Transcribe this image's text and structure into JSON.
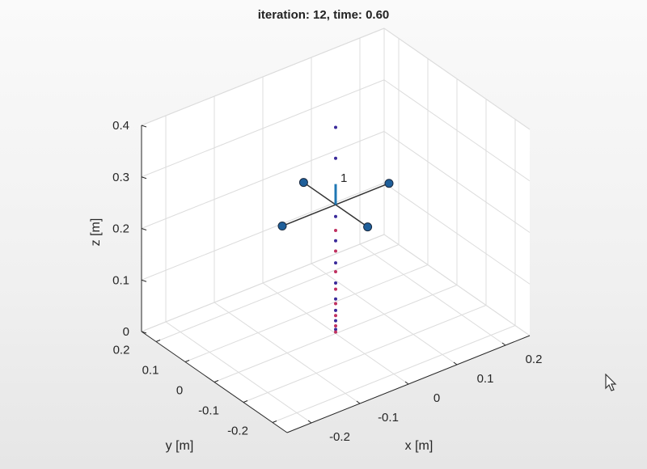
{
  "chart_data": {
    "type": "scatter3d",
    "title": "iteration: 12, time: 0.60",
    "xlabel": "x [m]",
    "ylabel": "y [m]",
    "zlabel": "z [m]",
    "xlim": [
      -0.25,
      0.25
    ],
    "ylim": [
      -0.25,
      0.25
    ],
    "zlim": [
      0,
      0.4
    ],
    "xticks": [
      -0.2,
      -0.1,
      0,
      0.1,
      0.2
    ],
    "yticks": [
      -0.2,
      -0.1,
      0,
      0.1,
      0.2
    ],
    "zticks": [
      0,
      0.1,
      0.2,
      0.3,
      0.4
    ],
    "xtick_labels": [
      "-0.2",
      "-0.1",
      "0",
      "0.1",
      "0.2"
    ],
    "ytick_labels": [
      "-0.2",
      "-0.1",
      "0",
      "0.1",
      "0.2"
    ],
    "ztick_labels": [
      "0",
      "0.1",
      "0.2",
      "0.3",
      "0.4"
    ],
    "grid": true,
    "view": "3d azimuth -37.5, elevation 30",
    "drone": {
      "label": "1",
      "position": [
        0,
        0,
        0.25
      ],
      "arm_length": 0.11,
      "heading_vector_length": 0.04,
      "arm_color": "#333333",
      "rotor_color": "#1f5f9a",
      "heading_color": "#1f77b4"
    },
    "trajectory_points": [
      {
        "z": 0.4,
        "color": "#3a2a9a"
      },
      {
        "z": 0.34,
        "color": "#3a2a9a"
      },
      {
        "z": 0.227,
        "color": "#3a2a9a"
      },
      {
        "z": 0.2,
        "color": "#c03060"
      },
      {
        "z": 0.18,
        "color": "#3a2a9a"
      },
      {
        "z": 0.16,
        "color": "#c03060"
      },
      {
        "z": 0.137,
        "color": "#3a2a9a"
      },
      {
        "z": 0.12,
        "color": "#c03060"
      },
      {
        "z": 0.098,
        "color": "#3a2a9a"
      },
      {
        "z": 0.086,
        "color": "#c03060"
      },
      {
        "z": 0.067,
        "color": "#3a2a9a"
      },
      {
        "z": 0.058,
        "color": "#c03060"
      },
      {
        "z": 0.045,
        "color": "#3a2a9a"
      },
      {
        "z": 0.035,
        "color": "#c03060"
      },
      {
        "z": 0.025,
        "color": "#3a2a9a"
      },
      {
        "z": 0.015,
        "color": "#c03060"
      },
      {
        "z": 0.008,
        "color": "#3a2a9a"
      },
      {
        "z": 0.003,
        "color": "#c03060"
      }
    ]
  },
  "colors": {
    "grid": "#dcdcdc",
    "axis": "#262626",
    "background": "#ffffff"
  },
  "cursor_icon": "mouse-pointer-icon"
}
